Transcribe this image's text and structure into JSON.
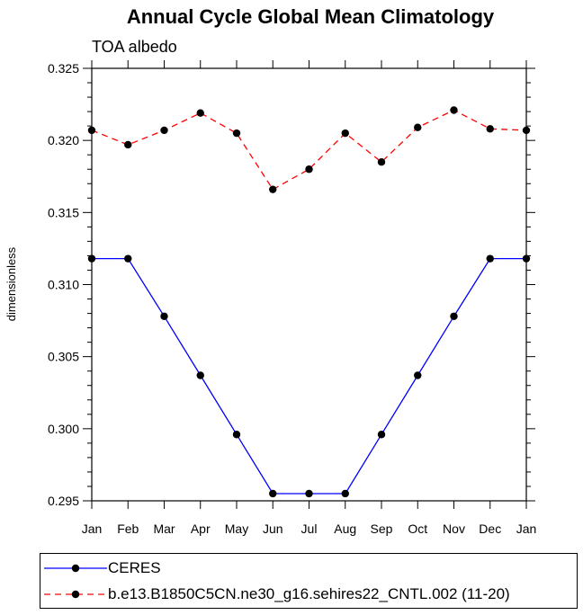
{
  "chart_data": {
    "type": "line",
    "title": "Annual Cycle Global Mean Climatology",
    "subtitle": "TOA albedo",
    "xlabel": "",
    "ylabel": "dimensionless",
    "categories": [
      "Jan",
      "Feb",
      "Mar",
      "Apr",
      "May",
      "Jun",
      "Jul",
      "Aug",
      "Sep",
      "Oct",
      "Nov",
      "Dec",
      "Jan"
    ],
    "ylim": [
      0.295,
      0.325
    ],
    "yticks": [
      "0.295",
      "0.300",
      "0.305",
      "0.310",
      "0.315",
      "0.320",
      "0.325"
    ],
    "ytick_values": [
      0.295,
      0.3,
      0.305,
      0.31,
      0.315,
      0.32,
      0.325
    ],
    "grid": false,
    "legend_position": "bottom",
    "series": [
      {
        "name": "CERES",
        "color": "#0000ff",
        "style": "solid",
        "values": [
          0.3118,
          0.3118,
          0.3078,
          0.3037,
          0.2996,
          0.2955,
          0.2955,
          0.2955,
          0.2996,
          0.3037,
          0.3078,
          0.3118,
          0.3118
        ]
      },
      {
        "name": "b.e13.B1850C5CN.ne30_g16.sehires22_CNTL.002 (11-20)",
        "color": "#ff0000",
        "style": "dashed",
        "values": [
          0.3207,
          0.3197,
          0.3207,
          0.3219,
          0.3205,
          0.3166,
          0.318,
          0.3205,
          0.3185,
          0.3209,
          0.3221,
          0.3208,
          0.3207
        ]
      }
    ]
  }
}
